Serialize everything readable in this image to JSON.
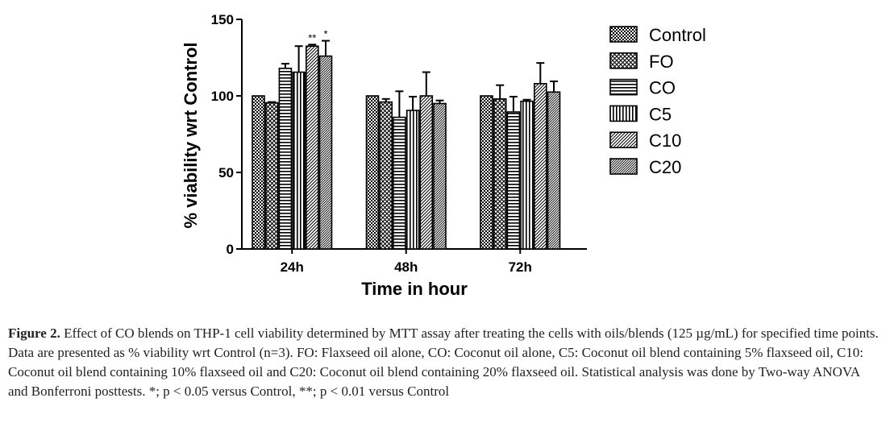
{
  "chart_data": {
    "type": "bar",
    "title": "",
    "xlabel": "Time in hour",
    "ylabel": "% viability wrt Control",
    "ylim": [
      0,
      150
    ],
    "yticks": [
      "0",
      "50",
      "100",
      "150"
    ],
    "categories": [
      "24h",
      "48h",
      "72h"
    ],
    "legend_position": "right",
    "grid": false,
    "series": [
      {
        "name": "Control",
        "values": [
          100,
          100,
          100
        ],
        "errors": [
          0,
          0,
          0
        ],
        "pattern": "checker"
      },
      {
        "name": "FO",
        "values": [
          95.5,
          96,
          98
        ],
        "errors": [
          0.5,
          2,
          9
        ],
        "pattern": "crosshatch"
      },
      {
        "name": "CO",
        "values": [
          118,
          86,
          89.5
        ],
        "errors": [
          3,
          17,
          10
        ],
        "pattern": "horizontal"
      },
      {
        "name": "C5",
        "values": [
          115.5,
          90.5,
          96.5
        ],
        "errors": [
          17,
          9,
          1
        ],
        "pattern": "vertical"
      },
      {
        "name": "C10",
        "values": [
          132.5,
          100,
          108
        ],
        "errors": [
          1,
          15.5,
          13.5
        ],
        "pattern": "diagonal"
      },
      {
        "name": "C20",
        "values": [
          126,
          95,
          102.5
        ],
        "errors": [
          10,
          2,
          7
        ],
        "pattern": "diagonal-dense"
      }
    ],
    "annotations": [
      {
        "category": "24h",
        "series": "C10",
        "text": "**"
      },
      {
        "category": "24h",
        "series": "C20",
        "text": "*"
      }
    ]
  },
  "caption": {
    "label": "Figure 2.",
    "text": " Effect of CO blends on THP-1 cell viability determined by MTT assay after treating the cells with oils/blends (125 µg/mL) for specified time points. Data are presented as % viability wrt Control (n=3). FO: Flaxseed oil alone, CO: Coconut oil alone, C5: Coconut oil blend containing 5% flaxseed oil, C10: Coconut oil blend containing 10% flaxseed oil and C20: Coconut oil blend containing 20% flaxseed oil. Statistical analysis was done by Two-way ANOVA and Bonferroni posttests. *; p < 0.05 versus Control, **; p < 0.01 versus Control"
  }
}
